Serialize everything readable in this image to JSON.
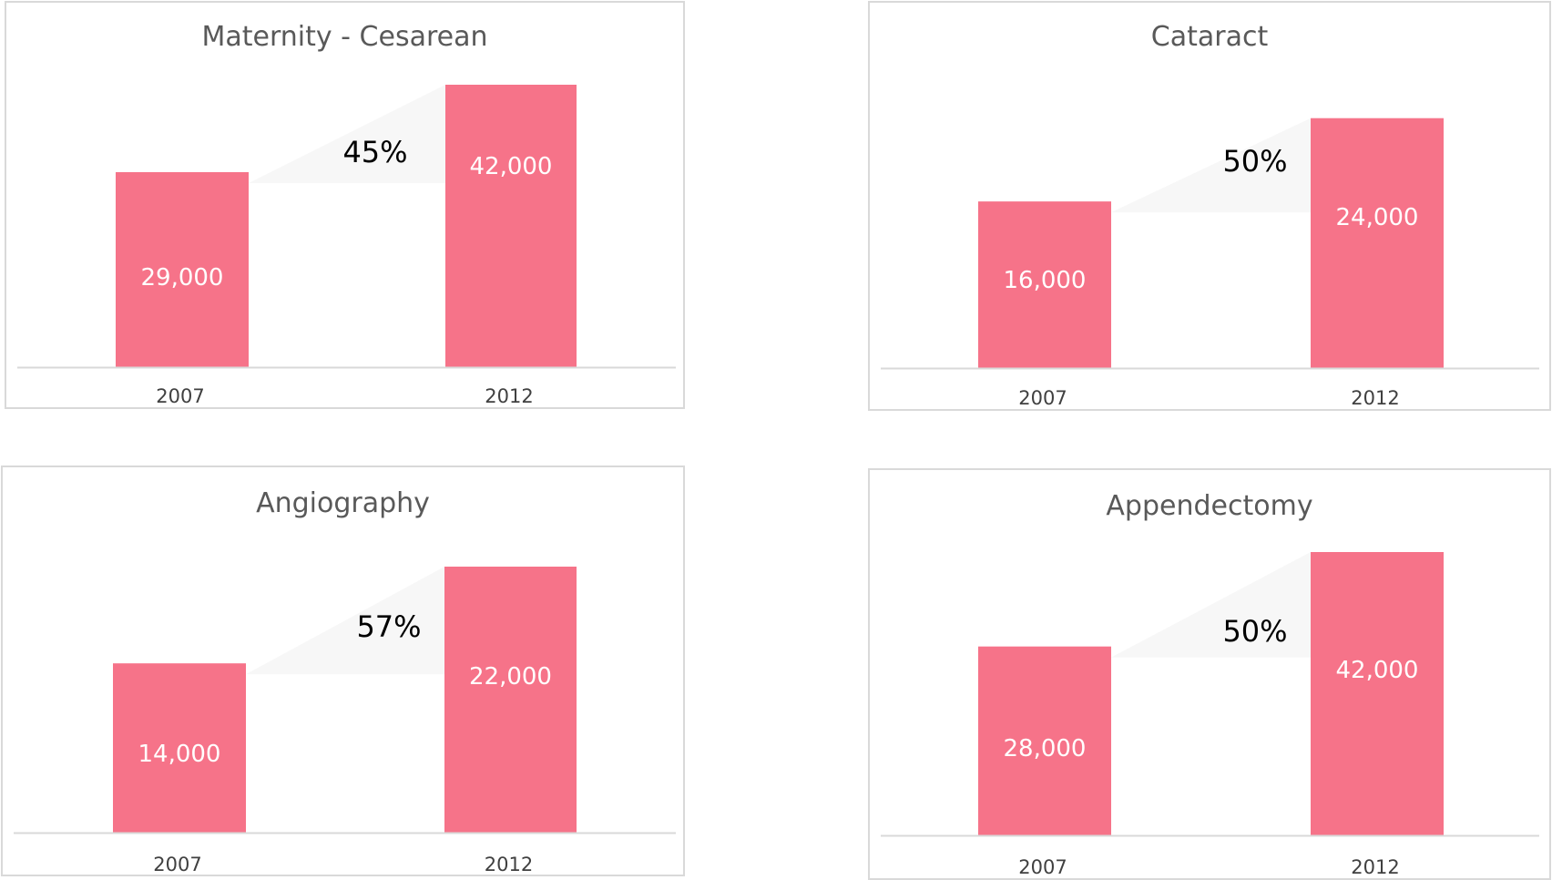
{
  "chart_data": [
    {
      "type": "bar",
      "title": "Maternity - Cesarean",
      "categories": [
        "2007",
        "2012"
      ],
      "values": [
        29000,
        42000
      ],
      "value_labels": [
        "29,000",
        "42,000"
      ],
      "change_label": "45%",
      "ylim": [
        0,
        42000
      ],
      "grid": false,
      "legend": "none",
      "xlabel": "",
      "ylabel": ""
    },
    {
      "type": "bar",
      "title": "Cataract",
      "categories": [
        "2007",
        "2012"
      ],
      "values": [
        16000,
        24000
      ],
      "value_labels": [
        "16,000",
        "24,000"
      ],
      "change_label": "50%",
      "ylim": [
        0,
        28000
      ],
      "grid": false,
      "legend": "none",
      "xlabel": "",
      "ylabel": ""
    },
    {
      "type": "bar",
      "title": "Angiography",
      "categories": [
        "2007",
        "2012"
      ],
      "values": [
        14000,
        22000
      ],
      "value_labels": [
        "14,000",
        "22,000"
      ],
      "change_label": "57%",
      "ylim": [
        0,
        22000
      ],
      "grid": false,
      "legend": "none",
      "xlabel": "",
      "ylabel": ""
    },
    {
      "type": "bar",
      "title": "Appendectomy",
      "categories": [
        "2007",
        "2012"
      ],
      "values": [
        28000,
        42000
      ],
      "value_labels": [
        "28,000",
        "42,000"
      ],
      "change_label": "50%",
      "ylim": [
        0,
        42000
      ],
      "grid": false,
      "legend": "none",
      "xlabel": "",
      "ylabel": ""
    }
  ],
  "colors": {
    "bar": "#f67389",
    "bar_label": "#ffffff",
    "change_shape": "#f7f7f7",
    "change_label": "#000000",
    "axis": "#d9d9d9",
    "tick_label": "#404040",
    "title": "#595959"
  }
}
